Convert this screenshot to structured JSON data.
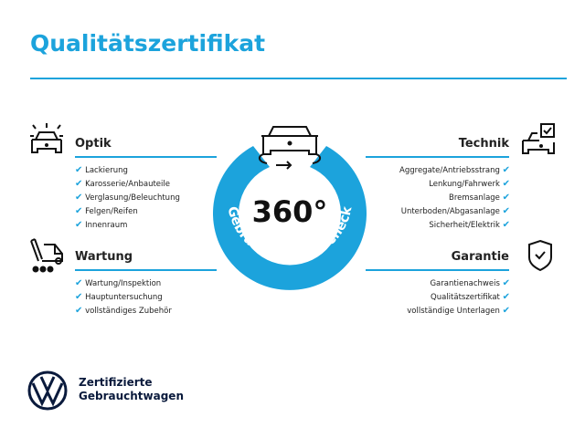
{
  "title": "Qualitätszertifikat",
  "accent": "#1ca3dc",
  "center": {
    "big": "360°",
    "ring_text": "Gebrauchtwagen-Check",
    "icon": "car-rotate-icon"
  },
  "sections": {
    "optik": {
      "title": "Optik",
      "icon": "car-lights-icon",
      "items": [
        "Lackierung",
        "Karosserie/Anbauteile",
        "Verglasung/Beleuchtung",
        "Felgen/Reifen",
        "Innenraum"
      ]
    },
    "wartung": {
      "title": "Wartung",
      "icon": "service-van-icon",
      "items": [
        "Wartung/Inspektion",
        "Hauptuntersuchung",
        "vollständiges Zubehör"
      ]
    },
    "technik": {
      "title": "Technik",
      "icon": "car-checkbox-icon",
      "items": [
        "Aggregate/Antriebsstrang",
        "Lenkung/Fahrwerk",
        "Bremsanlage",
        "Unterboden/Abgasanlage",
        "Sicherheit/Elektrik"
      ]
    },
    "garantie": {
      "title": "Garantie",
      "icon": "shield-check-icon",
      "items": [
        "Garantienachweis",
        "Qualitätszertifikat",
        "vollständige Unterlagen"
      ]
    }
  },
  "check": "✔",
  "footer": {
    "line1": "Zertifizierte",
    "line2": "Gebrauchtwagen"
  }
}
